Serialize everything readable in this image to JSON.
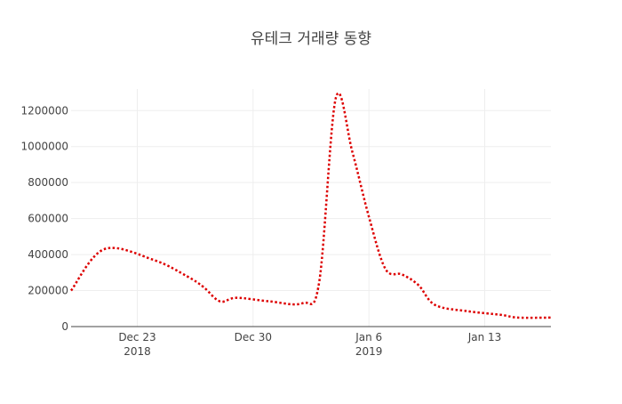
{
  "chart_data": {
    "type": "line",
    "title": "유테크 거래량 동향",
    "xlabel": "",
    "ylabel": "",
    "x_ticks": [
      {
        "date": "2018-12-23",
        "label": "Dec 23",
        "sublabel": "2018"
      },
      {
        "date": "2018-12-30",
        "label": "Dec 30",
        "sublabel": ""
      },
      {
        "date": "2019-01-06",
        "label": "Jan 6",
        "sublabel": "2019"
      },
      {
        "date": "2019-01-13",
        "label": "Jan 13",
        "sublabel": ""
      }
    ],
    "y_ticks": [
      0,
      200000,
      400000,
      600000,
      800000,
      1000000,
      1200000
    ],
    "y_tick_labels": [
      "0",
      "200000",
      "400000",
      "600000",
      "800000",
      "1000000",
      "1200000"
    ],
    "xlim": [
      "2018-12-19",
      "2019-01-17"
    ],
    "ylim": [
      0,
      1320000
    ],
    "grid": true,
    "series": [
      {
        "color": "#dd0000",
        "line_style": "dotted",
        "smoothing": "spline",
        "points": [
          {
            "x": "2018-12-19",
            "y": 200000
          },
          {
            "x": "2018-12-21",
            "y": 430000
          },
          {
            "x": "2018-12-24",
            "y": 370000
          },
          {
            "x": "2018-12-26",
            "y": 280000
          },
          {
            "x": "2018-12-27",
            "y": 220000
          },
          {
            "x": "2018-12-28",
            "y": 140000
          },
          {
            "x": "2018-12-29",
            "y": 160000
          },
          {
            "x": "2018-12-31",
            "y": 140000
          },
          {
            "x": "2019-01-02",
            "y": 130000
          },
          {
            "x": "2019-01-03",
            "y": 250000
          },
          {
            "x": "2019-01-04",
            "y": 1270000
          },
          {
            "x": "2019-01-05",
            "y": 970000
          },
          {
            "x": "2019-01-06",
            "y": 610000
          },
          {
            "x": "2019-01-07",
            "y": 320000
          },
          {
            "x": "2019-01-08",
            "y": 290000
          },
          {
            "x": "2019-01-09",
            "y": 230000
          },
          {
            "x": "2019-01-10",
            "y": 120000
          },
          {
            "x": "2019-01-12",
            "y": 85000
          },
          {
            "x": "2019-01-14",
            "y": 65000
          },
          {
            "x": "2019-01-15",
            "y": 50000
          },
          {
            "x": "2019-01-17",
            "y": 50000
          }
        ]
      }
    ]
  }
}
